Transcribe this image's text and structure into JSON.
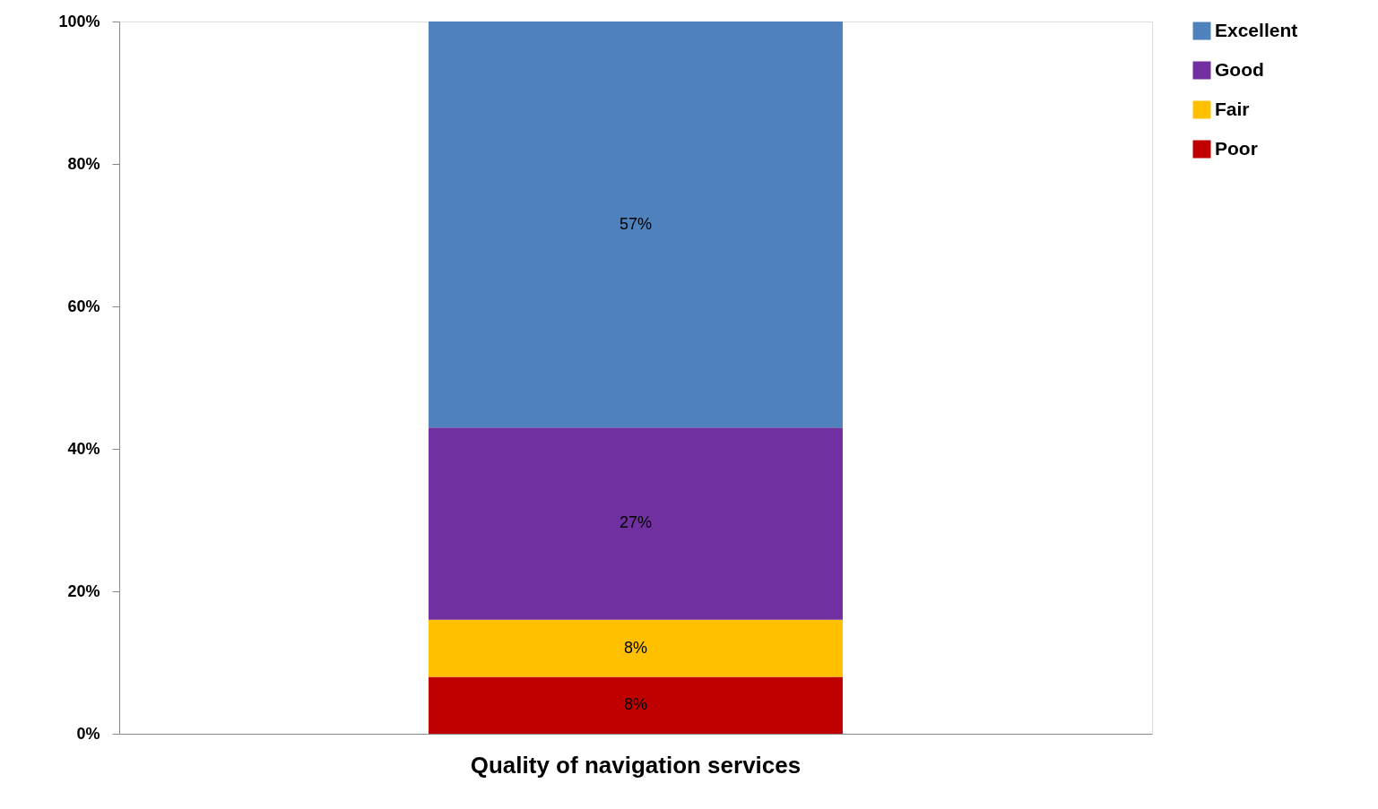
{
  "chart_data": {
    "type": "bar",
    "stacked": true,
    "categories": [
      "Quality of navigation services"
    ],
    "series": [
      {
        "name": "Poor",
        "color": "#c00000",
        "values": [
          8
        ],
        "value_labels": [
          "8%"
        ]
      },
      {
        "name": "Fair",
        "color": "#ffc000",
        "values": [
          8
        ],
        "value_labels": [
          "8%"
        ]
      },
      {
        "name": "Good",
        "color": "#7030a0",
        "values": [
          27
        ],
        "value_labels": [
          "27%"
        ]
      },
      {
        "name": "Excellent",
        "color": "#4f81bd",
        "values": [
          57
        ],
        "value_labels": [
          "57%"
        ]
      }
    ],
    "ylim": [
      0,
      100
    ],
    "yticks": [
      {
        "value": 0,
        "label": "0%"
      },
      {
        "value": 20,
        "label": "20%"
      },
      {
        "value": 40,
        "label": "40%"
      },
      {
        "value": 60,
        "label": "60%"
      },
      {
        "value": 80,
        "label": "80%"
      },
      {
        "value": 100,
        "label": "100%"
      }
    ],
    "grid": false,
    "legend": "right"
  }
}
